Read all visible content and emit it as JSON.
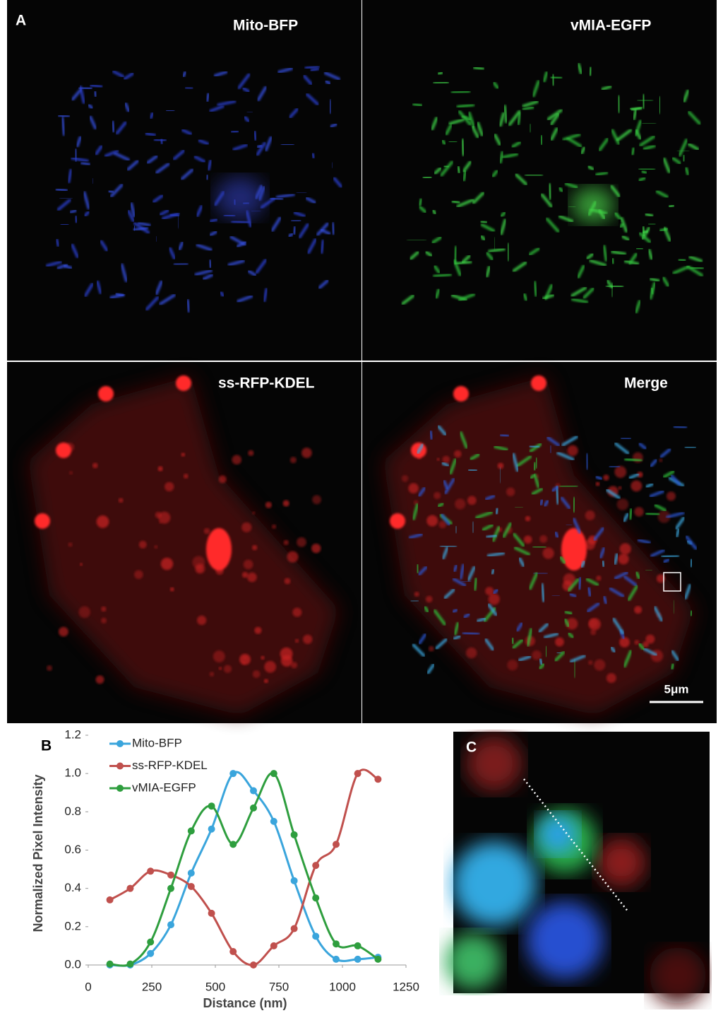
{
  "panels": {
    "a": {
      "label": "A",
      "images": [
        "Mito-BFP",
        "vMIA-EGFP",
        "ss-RFP-KDEL",
        "Merge"
      ],
      "scale_bar": "5μm"
    },
    "c": {
      "label": "C"
    }
  },
  "chart_data": {
    "type": "line",
    "panel_label": "B",
    "x_label": "Distance (nm)",
    "y_label": "Normalized Pixel Intensity",
    "x": [
      85,
      165,
      245,
      325,
      405,
      485,
      570,
      650,
      730,
      810,
      895,
      975,
      1060,
      1140
    ],
    "series": [
      {
        "name": "Mito-BFP",
        "color": "#3aa5dc",
        "values": [
          0,
          0,
          0.06,
          0.21,
          0.48,
          0.71,
          1.0,
          0.91,
          0.75,
          0.44,
          0.15,
          0.03,
          0.03,
          0.04
        ]
      },
      {
        "name": "ss-RFP-KDEL",
        "color": "#c0504d",
        "values": [
          0.34,
          0.4,
          0.49,
          0.47,
          0.41,
          0.27,
          0.07,
          0.0,
          0.1,
          0.19,
          0.52,
          0.63,
          1.0,
          0.97
        ]
      },
      {
        "name": "vMIA-EGFP",
        "color": "#2e9e3e",
        "values": [
          0.005,
          0.005,
          0.12,
          0.4,
          0.7,
          0.83,
          0.63,
          0.82,
          1.0,
          0.68,
          0.35,
          0.11,
          0.1,
          0.03
        ]
      }
    ],
    "xlim": [
      0,
      1250
    ],
    "xticks": [
      0,
      250,
      500,
      750,
      1000,
      1250
    ],
    "ylim": [
      0,
      1.2
    ],
    "yticks": [
      {
        "value": 0,
        "label": "0.0"
      },
      {
        "value": 0.2,
        "label": "0.2"
      },
      {
        "value": 0.4,
        "label": "0.4"
      },
      {
        "value": 0.6,
        "label": "0.6"
      },
      {
        "value": 0.8,
        "label": "0.8"
      },
      {
        "value": 1.0,
        "label": "1.0"
      },
      {
        "value": 1.2,
        "label": "1.2"
      }
    ],
    "legend": "top-left",
    "smooth": true
  }
}
